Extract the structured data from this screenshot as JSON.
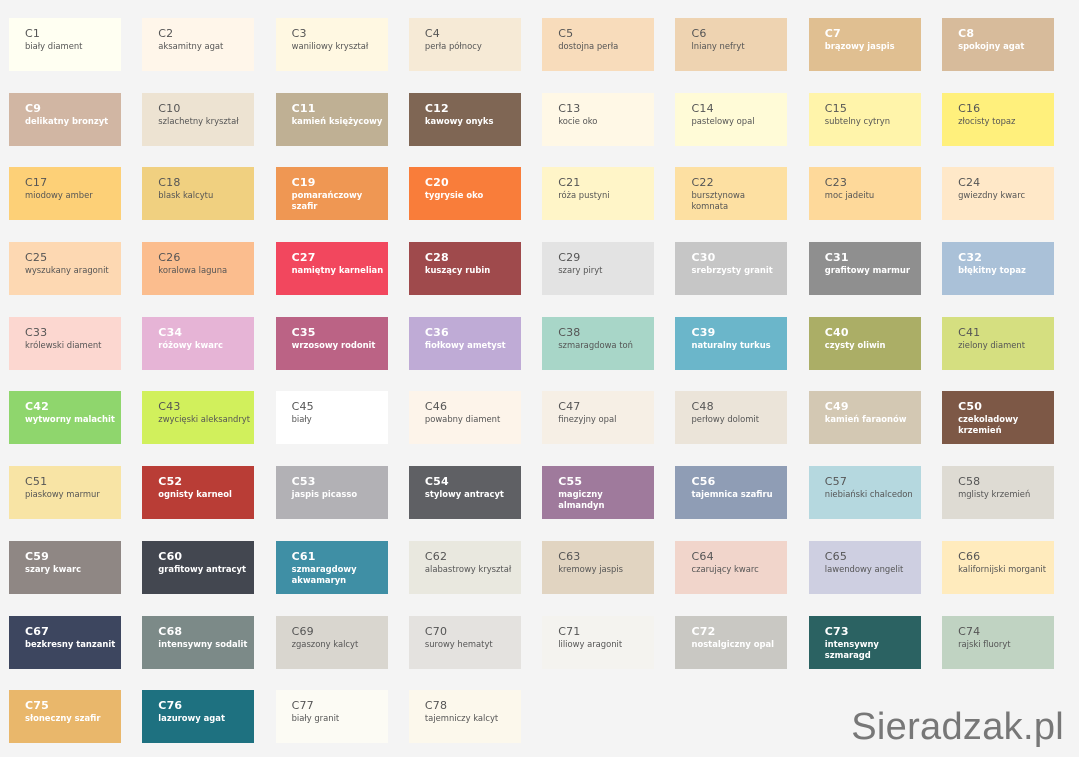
{
  "watermark": "Sieradzak.pl",
  "swatches": [
    {
      "code": "C1",
      "name": "biały diament",
      "bg": "#fffff2",
      "fg": "#555555"
    },
    {
      "code": "C2",
      "name": "aksamitny agat",
      "bg": "#fff6ea",
      "fg": "#555555"
    },
    {
      "code": "C3",
      "name": "waniliowy kryształ",
      "bg": "#fff8e2",
      "fg": "#555555"
    },
    {
      "code": "C4",
      "name": "perła północy",
      "bg": "#f6ead6",
      "fg": "#555555"
    },
    {
      "code": "C5",
      "name": "dostojna perła",
      "bg": "#f8dcbb",
      "fg": "#555555"
    },
    {
      "code": "C6",
      "name": "lniany nefryt",
      "bg": "#eed3b1",
      "fg": "#555555"
    },
    {
      "code": "C7",
      "name": "brązowy jaspis",
      "bg": "#e0bf91",
      "fg": "#ffffff"
    },
    {
      "code": "C8",
      "name": "spokojny agat",
      "bg": "#d7bb9b",
      "fg": "#ffffff"
    },
    {
      "code": "C9",
      "name": "delikatny bronzyt",
      "bg": "#d1b6a3",
      "fg": "#ffffff"
    },
    {
      "code": "C10",
      "name": "szlachetny kryształ",
      "bg": "#ede3d2",
      "fg": "#555555"
    },
    {
      "code": "C11",
      "name": "kamień księżycowy",
      "bg": "#bfb094",
      "fg": "#ffffff"
    },
    {
      "code": "C12",
      "name": "kawowy onyks",
      "bg": "#7f6654",
      "fg": "#ffffff"
    },
    {
      "code": "C13",
      "name": "kocie oko",
      "bg": "#fff8e6",
      "fg": "#555555"
    },
    {
      "code": "C14",
      "name": "pastelowy opal",
      "bg": "#fffbd7",
      "fg": "#555555"
    },
    {
      "code": "C15",
      "name": "subtelny cytryn",
      "bg": "#fff4aa",
      "fg": "#555555"
    },
    {
      "code": "C16",
      "name": "złocisty topaz",
      "bg": "#fff07c",
      "fg": "#555555"
    },
    {
      "code": "C17",
      "name": "miodowy amber",
      "bg": "#fdd077",
      "fg": "#555555"
    },
    {
      "code": "C18",
      "name": "blask kalcytu",
      "bg": "#f0d080",
      "fg": "#555555"
    },
    {
      "code": "C19",
      "name": "pomarańczowy szafir",
      "bg": "#ef9753",
      "fg": "#ffffff"
    },
    {
      "code": "C20",
      "name": "tygrysie oko",
      "bg": "#f97d3a",
      "fg": "#ffffff"
    },
    {
      "code": "C21",
      "name": "róża pustyni",
      "bg": "#fff5c8",
      "fg": "#555555"
    },
    {
      "code": "C22",
      "name": "bursztynowa komnata",
      "bg": "#fde0a2",
      "fg": "#555555"
    },
    {
      "code": "C23",
      "name": "moc jadeitu",
      "bg": "#fed99a",
      "fg": "#555555"
    },
    {
      "code": "C24",
      "name": "gwiezdny kwarc",
      "bg": "#ffe8c8",
      "fg": "#555555"
    },
    {
      "code": "C25",
      "name": "wyszukany aragonit",
      "bg": "#fdd8b2",
      "fg": "#555555"
    },
    {
      "code": "C26",
      "name": "koralowa laguna",
      "bg": "#fbbd8e",
      "fg": "#555555"
    },
    {
      "code": "C27",
      "name": "namiętny karnelian",
      "bg": "#f2475e",
      "fg": "#ffffff"
    },
    {
      "code": "C28",
      "name": "kuszący rubin",
      "bg": "#9f4a4c",
      "fg": "#ffffff"
    },
    {
      "code": "C29",
      "name": "szary piryt",
      "bg": "#e3e3e3",
      "fg": "#555555"
    },
    {
      "code": "C30",
      "name": "srebrzysty granit",
      "bg": "#c6c6c6",
      "fg": "#ffffff"
    },
    {
      "code": "C31",
      "name": "grafitowy marmur",
      "bg": "#8f8f8f",
      "fg": "#ffffff"
    },
    {
      "code": "C32",
      "name": "błękitny topaz",
      "bg": "#aac1d8",
      "fg": "#ffffff"
    },
    {
      "code": "C33",
      "name": "królewski diament",
      "bg": "#fcd7d0",
      "fg": "#555555"
    },
    {
      "code": "C34",
      "name": "różowy kwarc",
      "bg": "#e6b4d6",
      "fg": "#ffffff"
    },
    {
      "code": "C35",
      "name": "wrzosowy rodonit",
      "bg": "#bb6385",
      "fg": "#ffffff"
    },
    {
      "code": "C36",
      "name": "fiołkowy ametyst",
      "bg": "#bfabd6",
      "fg": "#ffffff"
    },
    {
      "code": "C38",
      "name": "szmaragdowa toń",
      "bg": "#a8d6c8",
      "fg": "#555555"
    },
    {
      "code": "C39",
      "name": "naturalny turkus",
      "bg": "#6bb6ca",
      "fg": "#ffffff"
    },
    {
      "code": "C40",
      "name": "czysty oliwin",
      "bg": "#abae66",
      "fg": "#ffffff"
    },
    {
      "code": "C41",
      "name": "zielony diament",
      "bg": "#d5df80",
      "fg": "#555555"
    },
    {
      "code": "C42",
      "name": "wytworny malachit",
      "bg": "#8fd66d",
      "fg": "#ffffff"
    },
    {
      "code": "C43",
      "name": "zwycięski aleksandryt",
      "bg": "#d1f05c",
      "fg": "#555555"
    },
    {
      "code": "C45",
      "name": "biały",
      "bg": "#ffffff",
      "fg": "#555555"
    },
    {
      "code": "C46",
      "name": "powabny diament",
      "bg": "#fdf4ea",
      "fg": "#555555"
    },
    {
      "code": "C47",
      "name": "finezyjny opal",
      "bg": "#f6efe5",
      "fg": "#555555"
    },
    {
      "code": "C48",
      "name": "perłowy dolomit",
      "bg": "#ebe4d9",
      "fg": "#555555"
    },
    {
      "code": "C49",
      "name": "kamień faraonów",
      "bg": "#d3c8b3",
      "fg": "#ffffff"
    },
    {
      "code": "C50",
      "name": "czekoladowy krzemień",
      "bg": "#7d5846",
      "fg": "#ffffff"
    },
    {
      "code": "C51",
      "name": "piaskowy marmur",
      "bg": "#f8e4a5",
      "fg": "#555555"
    },
    {
      "code": "C52",
      "name": "ognisty karneol",
      "bg": "#b93d36",
      "fg": "#ffffff"
    },
    {
      "code": "C53",
      "name": "jaspis picasso",
      "bg": "#b2b1b5",
      "fg": "#ffffff"
    },
    {
      "code": "C54",
      "name": "stylowy antracyt",
      "bg": "#5f6064",
      "fg": "#ffffff"
    },
    {
      "code": "C55",
      "name": "magiczny almandyn",
      "bg": "#9f7a9c",
      "fg": "#ffffff"
    },
    {
      "code": "C56",
      "name": "tajemnica szafiru",
      "bg": "#8f9db5",
      "fg": "#ffffff"
    },
    {
      "code": "C57",
      "name": "niebiański chalcedon",
      "bg": "#b5d8df",
      "fg": "#555555"
    },
    {
      "code": "C58",
      "name": "mglisty krzemień",
      "bg": "#dedbd3",
      "fg": "#555555"
    },
    {
      "code": "C59",
      "name": "szary kwarc",
      "bg": "#8f8784",
      "fg": "#ffffff"
    },
    {
      "code": "C60",
      "name": "grafitowy antracyt",
      "bg": "#434750",
      "fg": "#ffffff"
    },
    {
      "code": "C61",
      "name": "szmaragdowy akwamaryn",
      "bg": "#3f8fa5",
      "fg": "#ffffff"
    },
    {
      "code": "C62",
      "name": "alabastrowy kryształ",
      "bg": "#e9e8df",
      "fg": "#555555"
    },
    {
      "code": "C63",
      "name": "kremowy jaspis",
      "bg": "#e1d4c1",
      "fg": "#555555"
    },
    {
      "code": "C64",
      "name": "czarujący kwarc",
      "bg": "#f1d5cb",
      "fg": "#555555"
    },
    {
      "code": "C65",
      "name": "lawendowy angelit",
      "bg": "#cecfe1",
      "fg": "#555555"
    },
    {
      "code": "C66",
      "name": "kalifornijski morganit",
      "bg": "#ffebbd",
      "fg": "#555555"
    },
    {
      "code": "C67",
      "name": "bezkresny tanzanit",
      "bg": "#3d465f",
      "fg": "#ffffff"
    },
    {
      "code": "C68",
      "name": "intensywny sodalit",
      "bg": "#7c8a88",
      "fg": "#ffffff"
    },
    {
      "code": "C69",
      "name": "zgaszony kalcyt",
      "bg": "#d9d6cf",
      "fg": "#555555"
    },
    {
      "code": "C70",
      "name": "surowy hematyt",
      "bg": "#e4e2df",
      "fg": "#555555"
    },
    {
      "code": "C71",
      "name": "liliowy aragonit",
      "bg": "#f4f3ef",
      "fg": "#555555"
    },
    {
      "code": "C72",
      "name": "nostalgiczny opal",
      "bg": "#c9c8c3",
      "fg": "#ffffff"
    },
    {
      "code": "C73",
      "name": "intensywny szmaragd",
      "bg": "#2b6262",
      "fg": "#ffffff"
    },
    {
      "code": "C74",
      "name": "rajski fluoryt",
      "bg": "#c0d3c2",
      "fg": "#555555"
    },
    {
      "code": "C75",
      "name": "słoneczny szafir",
      "bg": "#e9b76b",
      "fg": "#ffffff"
    },
    {
      "code": "C76",
      "name": "lazurowy agat",
      "bg": "#1e7180",
      "fg": "#ffffff"
    },
    {
      "code": "C77",
      "name": "biały granit",
      "bg": "#fcfbf4",
      "fg": "#555555"
    },
    {
      "code": "C78",
      "name": "tajemniczy kalcyt",
      "bg": "#fcf8ec",
      "fg": "#555555"
    }
  ]
}
